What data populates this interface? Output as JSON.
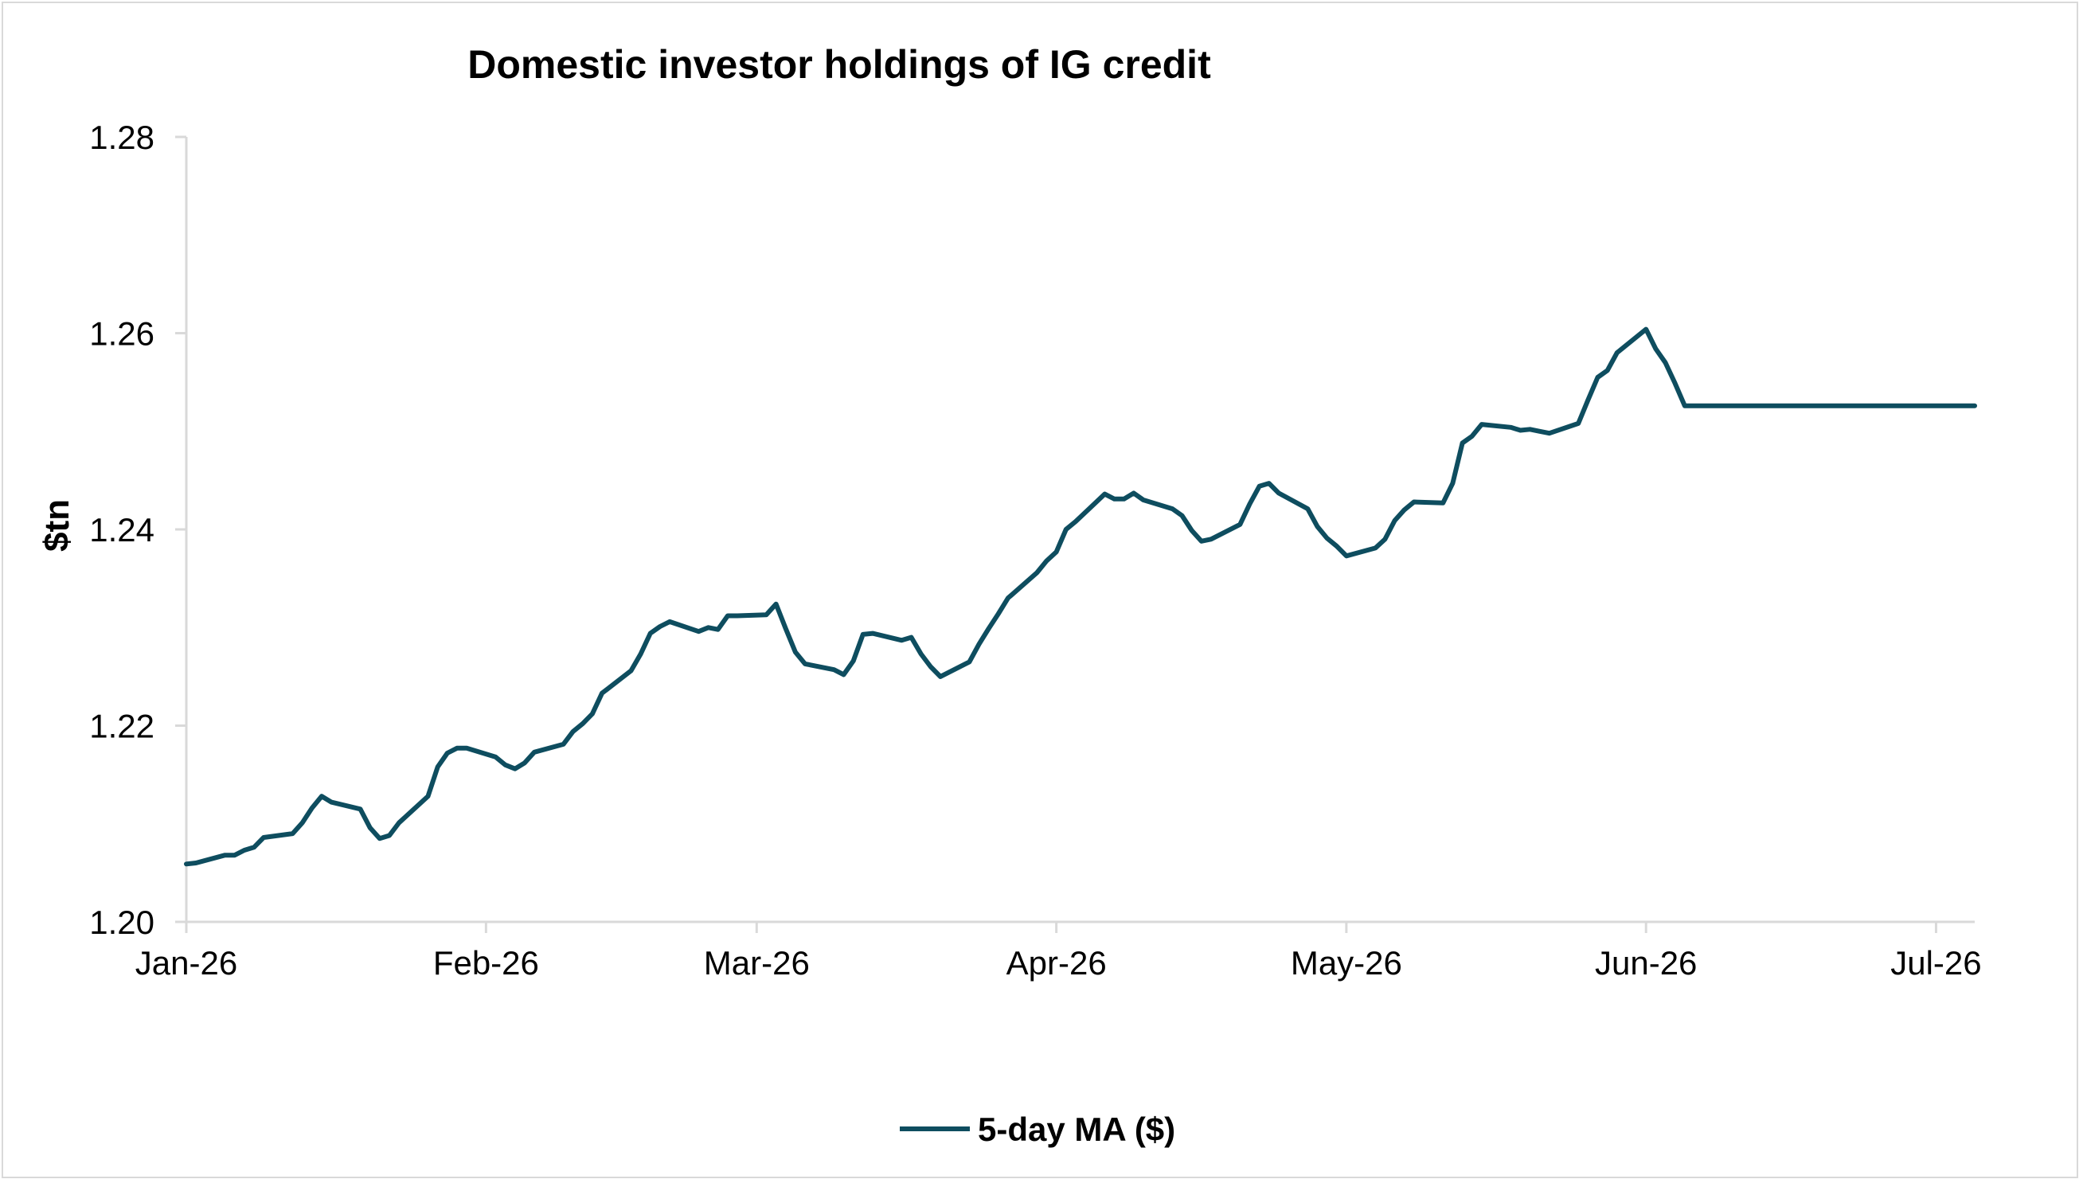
{
  "chart_data": {
    "type": "line",
    "title": "Domestic investor holdings of IG credit",
    "ylabel": "$tn",
    "xlabel": "",
    "ylim": [
      1.2,
      1.28
    ],
    "yticks": [
      1.2,
      1.22,
      1.24,
      1.26,
      1.28
    ],
    "ytick_labels": [
      "1.20",
      "1.22",
      "1.24",
      "1.26",
      "1.28"
    ],
    "xlim": [
      "2026-01-01",
      "2026-07-05"
    ],
    "xticks": [
      "2026-01-01",
      "2026-02-01",
      "2026-03-01",
      "2026-04-01",
      "2026-05-01",
      "2026-06-01",
      "2026-07-01"
    ],
    "xtick_labels": [
      "Jan-26",
      "Feb-26",
      "Mar-26",
      "Apr-26",
      "May-26",
      "Jun-26",
      "Jul-26"
    ],
    "grid": false,
    "legend_position": "bottom-center",
    "colors": {
      "series": "#0e4d5f",
      "axis": "#d9d9d9"
    },
    "series": [
      {
        "name": "5-day MA ($)",
        "x": [
          "2026-01-01",
          "2026-01-02",
          "2026-01-05",
          "2026-01-06",
          "2026-01-07",
          "2026-01-08",
          "2026-01-09",
          "2026-01-12",
          "2026-01-13",
          "2026-01-14",
          "2026-01-15",
          "2026-01-16",
          "2026-01-19",
          "2026-01-20",
          "2026-01-21",
          "2026-01-22",
          "2026-01-23",
          "2026-01-26",
          "2026-01-27",
          "2026-01-28",
          "2026-01-29",
          "2026-01-30",
          "2026-02-02",
          "2026-02-03",
          "2026-02-04",
          "2026-02-05",
          "2026-02-06",
          "2026-02-09",
          "2026-02-10",
          "2026-02-11",
          "2026-02-12",
          "2026-02-13",
          "2026-02-16",
          "2026-02-17",
          "2026-02-18",
          "2026-02-19",
          "2026-02-20",
          "2026-02-23",
          "2026-02-24",
          "2026-02-25",
          "2026-02-26",
          "2026-02-27",
          "2026-03-02",
          "2026-03-03",
          "2026-03-04",
          "2026-03-05",
          "2026-03-06",
          "2026-03-09",
          "2026-03-10",
          "2026-03-11",
          "2026-03-12",
          "2026-03-13",
          "2026-03-16",
          "2026-03-17",
          "2026-03-18",
          "2026-03-19",
          "2026-03-20",
          "2026-03-23",
          "2026-03-24",
          "2026-03-25",
          "2026-03-26",
          "2026-03-27",
          "2026-03-30",
          "2026-03-31",
          "2026-04-01",
          "2026-04-02",
          "2026-04-03",
          "2026-04-06",
          "2026-04-07",
          "2026-04-08",
          "2026-04-09",
          "2026-04-10",
          "2026-04-13",
          "2026-04-14",
          "2026-04-15",
          "2026-04-16",
          "2026-04-17",
          "2026-04-20",
          "2026-04-21",
          "2026-04-22",
          "2026-04-23",
          "2026-04-24",
          "2026-04-27",
          "2026-04-28",
          "2026-04-29",
          "2026-04-30",
          "2026-05-01",
          "2026-05-04",
          "2026-05-05",
          "2026-05-06",
          "2026-05-07",
          "2026-05-08",
          "2026-05-11",
          "2026-05-12",
          "2026-05-13",
          "2026-05-14",
          "2026-05-15",
          "2026-05-18",
          "2026-05-19",
          "2026-05-20",
          "2026-05-21",
          "2026-05-22",
          "2026-05-25",
          "2026-05-26",
          "2026-05-27",
          "2026-05-28",
          "2026-05-29",
          "2026-06-01",
          "2026-06-02",
          "2026-06-03",
          "2026-06-04",
          "2026-06-05",
          "2026-06-08",
          "2026-06-09",
          "2026-06-10",
          "2026-06-11",
          "2026-06-12",
          "2026-06-15",
          "2026-06-16",
          "2026-06-17",
          "2026-06-18",
          "2026-06-19",
          "2026-06-22",
          "2026-06-23",
          "2026-06-24",
          "2026-06-25",
          "2026-06-26",
          "2026-06-29",
          "2026-06-30",
          "2026-07-01",
          "2026-07-02",
          "2026-07-03",
          "2026-07-05"
        ],
        "y": [
          1.2059,
          1.206,
          1.2068,
          1.2068,
          1.2073,
          1.2076,
          1.2086,
          1.209,
          1.2101,
          1.2116,
          1.2128,
          1.2122,
          1.2115,
          1.2096,
          1.2085,
          1.2088,
          1.2101,
          1.2128,
          1.2158,
          1.2172,
          1.2177,
          1.2177,
          1.2168,
          1.216,
          1.2156,
          1.2162,
          1.2173,
          1.2181,
          1.2194,
          1.2202,
          1.2212,
          1.2233,
          1.2256,
          1.2273,
          1.2294,
          1.2301,
          1.2306,
          1.2296,
          1.23,
          1.2298,
          1.2312,
          1.2312,
          1.2313,
          1.2324,
          1.2299,
          1.2275,
          1.2263,
          1.2257,
          1.2252,
          1.2266,
          1.2293,
          1.2294,
          1.2287,
          1.229,
          1.2273,
          1.226,
          1.225,
          1.2265,
          1.2283,
          1.2299,
          1.2314,
          1.233,
          1.2356,
          1.2368,
          1.2377,
          1.24,
          1.2408,
          1.2436,
          1.2431,
          1.2431,
          1.2437,
          1.243,
          1.2421,
          1.2414,
          1.2399,
          1.2388,
          1.239,
          1.2405,
          1.2426,
          1.2444,
          1.2447,
          1.2437,
          1.2421,
          1.2403,
          1.2391,
          1.2383,
          1.2373,
          1.2381,
          1.239,
          1.2409,
          1.242,
          1.2428,
          1.2427,
          1.2447,
          1.2488,
          1.2495,
          1.2507,
          1.2504,
          1.2501,
          1.2502,
          1.25,
          1.2498,
          1.2508,
          1.2532,
          1.2555,
          1.2562,
          1.258,
          1.2604,
          1.2584,
          1.257,
          1.2549,
          1.2526,
          1.2526,
          1.2526,
          1.2526,
          1.2526,
          1.2526,
          1.2526,
          1.2526,
          1.2526,
          1.2526,
          1.2526,
          1.2526,
          1.2526,
          1.2526,
          1.2526,
          1.2526,
          1.2526,
          1.2526,
          1.2526,
          1.2526,
          1.2526,
          1.2526
        ]
      }
    ]
  }
}
